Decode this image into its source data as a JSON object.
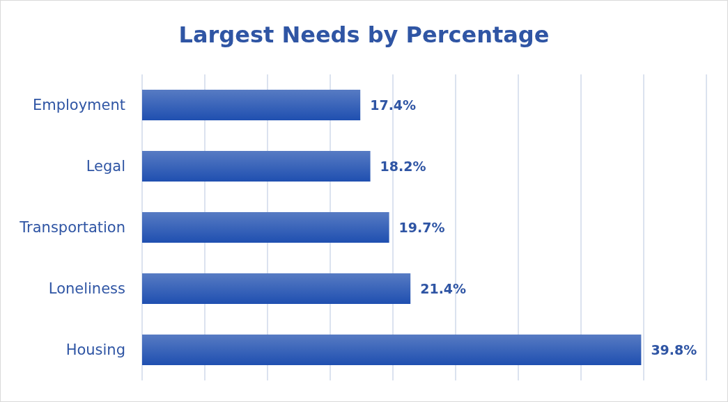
{
  "chart_data": {
    "type": "bar",
    "orientation": "horizontal",
    "title": "Largest Needs by Percentage",
    "categories": [
      "Employment",
      "Legal",
      "Transportation",
      "Loneliness",
      "Housing"
    ],
    "values": [
      17.4,
      18.2,
      19.7,
      21.4,
      39.8
    ],
    "value_labels": [
      "17.4%",
      "18.2%",
      "19.7%",
      "21.4%",
      "39.8%"
    ],
    "color": "#1f4fb0",
    "xlim": [
      0,
      45
    ],
    "xticks": [
      {
        "value": 0,
        "label": null
      },
      {
        "value": 5,
        "label": null
      },
      {
        "value": 10,
        "label": null
      },
      {
        "value": 15,
        "label": null
      },
      {
        "value": 20,
        "label": null
      },
      {
        "value": 25,
        "label": null
      },
      {
        "value": 30,
        "label": null
      },
      {
        "value": 35,
        "label": null
      },
      {
        "value": 40,
        "label": null
      },
      {
        "value": 45,
        "label": null
      }
    ],
    "grid": "x",
    "tick_labels": "y"
  }
}
